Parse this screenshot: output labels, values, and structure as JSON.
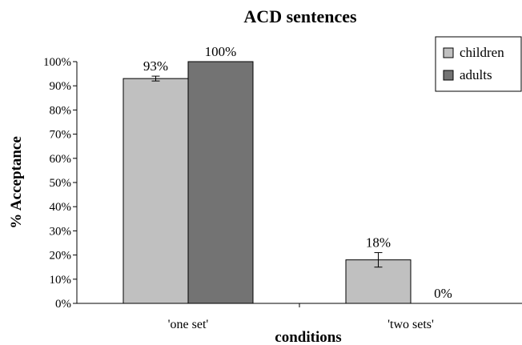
{
  "chart_data": {
    "type": "bar",
    "title": "ACD sentences",
    "xlabel": "conditions",
    "ylabel": "% Acceptance",
    "categories": [
      "'one set'",
      "'two sets'"
    ],
    "series": [
      {
        "name": "children",
        "values": [
          93,
          18
        ],
        "error": [
          1,
          3
        ],
        "labels": [
          "93%",
          "18%"
        ],
        "color": "#c0c0c0"
      },
      {
        "name": "adults",
        "values": [
          100,
          0
        ],
        "error": [
          0,
          0
        ],
        "labels": [
          "100%",
          "0%"
        ],
        "color": "#737373"
      }
    ],
    "ylim": [
      0,
      100
    ],
    "yticks": [
      "0%",
      "10%",
      "20%",
      "30%",
      "40%",
      "50%",
      "60%",
      "70%",
      "80%",
      "90%",
      "100%"
    ],
    "grid": false,
    "legend_position": "top-right"
  }
}
